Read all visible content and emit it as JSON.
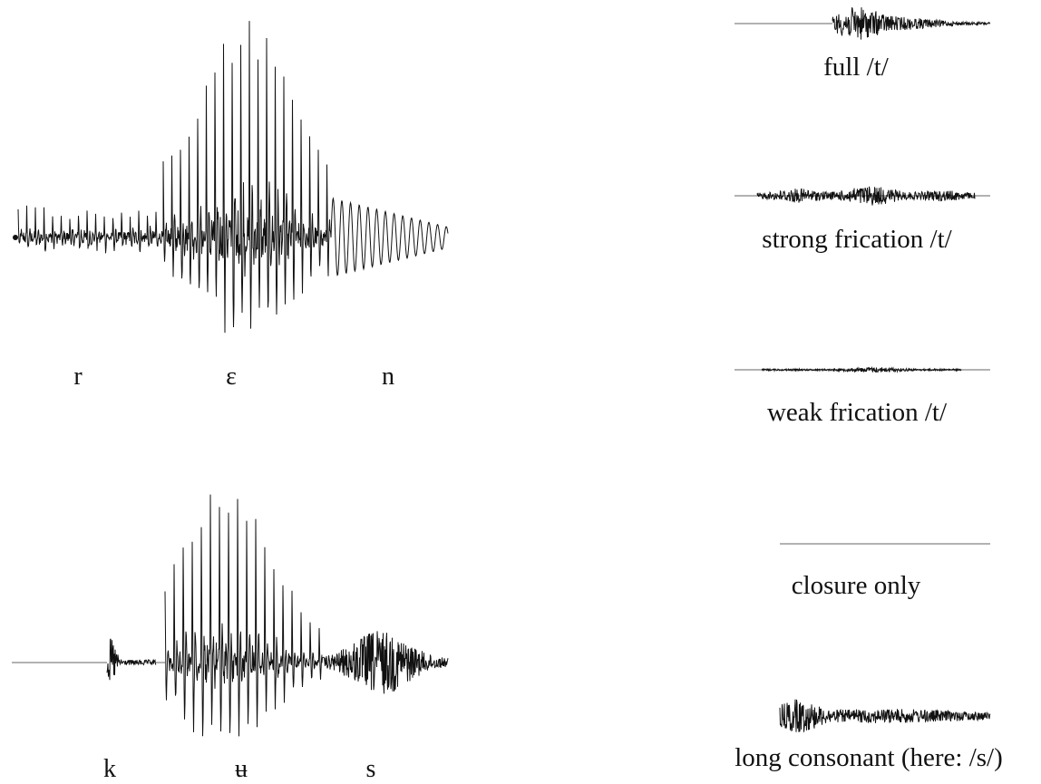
{
  "waveforms": {
    "top_left": {
      "segments": [
        "r",
        "ɛ",
        "n"
      ]
    },
    "bottom_left": {
      "segments": [
        "k",
        "ʉ",
        "s"
      ]
    },
    "right_panel": [
      {
        "label": "full /t/"
      },
      {
        "label": "strong frication /t/"
      },
      {
        "label": "weak frication /t/"
      },
      {
        "label": "closure only"
      },
      {
        "label": "long consonant (here: /s/)"
      }
    ]
  },
  "colors": {
    "wave": "#111111",
    "baseline": "#999999",
    "text": "#111111"
  }
}
